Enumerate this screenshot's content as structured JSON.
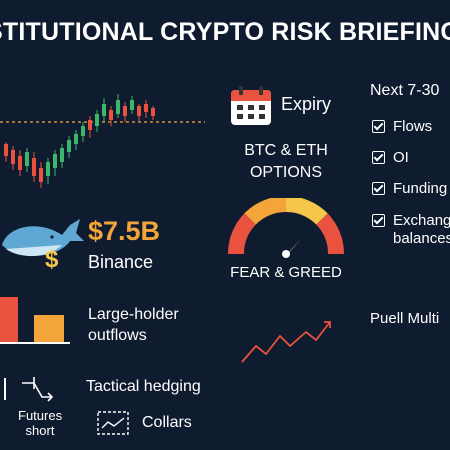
{
  "header": {
    "title": "STITUTIONAL CRYPTO RISK BRIEFING"
  },
  "whale": {
    "amount": "$7.5B",
    "exchange": "Binance",
    "outflows_label": "Large-holder outflows"
  },
  "expiry": {
    "label": "Expiry",
    "subtitle_line1": "BTC & ETH",
    "subtitle_line2": "OPTIONS"
  },
  "gauge": {
    "label": "FEAR & GREED"
  },
  "watch": {
    "heading": "Next 7-30",
    "items": [
      "Flows",
      "OI",
      "Funding",
      "Exchange balances"
    ]
  },
  "puell": {
    "label": "Puell Multi"
  },
  "hedging": {
    "label": "Tactical hedging",
    "futures_line1": "Futures",
    "futures_line2": "short",
    "collars": "Collars"
  },
  "colors": {
    "background": "#0f1b2e",
    "red": "#e8523f",
    "green": "#3bb76b",
    "orange": "#f3a53a",
    "yellow": "#f4c64a"
  }
}
